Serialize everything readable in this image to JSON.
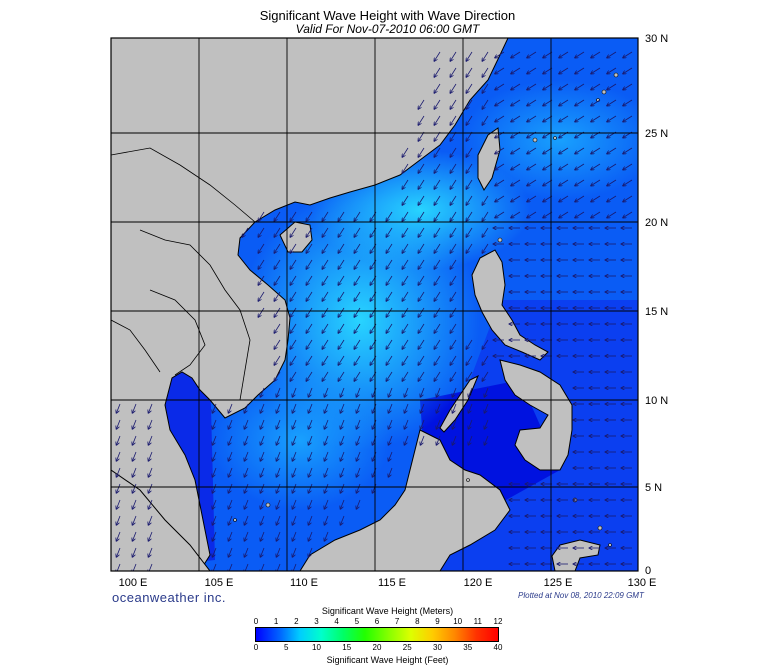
{
  "title": "Significant Wave Height with Wave Direction",
  "subtitle": "Valid For Nov-07-2010 06:00 GMT",
  "lon_labels": [
    "100 E",
    "105 E",
    "110 E",
    "115 E",
    "120 E",
    "125 E",
    "130 E"
  ],
  "lat_labels": [
    "30 N",
    "25 N",
    "20 N",
    "15 N",
    "10 N",
    "5 N",
    "0"
  ],
  "brand": "oceanweather inc.",
  "plotted": "Plotted at Nov 08, 2010 22:09 GMT",
  "legend": {
    "meters_title": "Significant Wave Height (Meters)",
    "feet_title": "Significant Wave Height (Feet)",
    "meters_ticks": [
      "0",
      "1",
      "2",
      "3",
      "4",
      "5",
      "6",
      "7",
      "8",
      "9",
      "10",
      "11",
      "12"
    ],
    "feet_ticks": [
      "0",
      "5",
      "10",
      "15",
      "20",
      "25",
      "30",
      "35",
      "40"
    ]
  },
  "colors": {
    "land": "#c0c0c0",
    "sea_deep": "#0000ee",
    "sea_mid": "#0a5cf5",
    "sea_high": "#1fc0ff",
    "arrow": "#1a1a6e"
  }
}
